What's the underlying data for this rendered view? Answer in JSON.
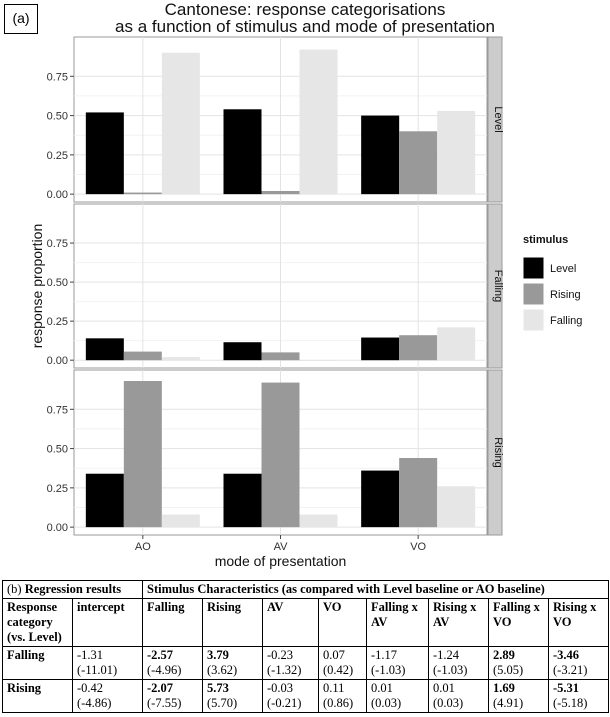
{
  "panel_label": "(a)",
  "title_line1": "Cantonese: response categorisations",
  "title_line2": "as a function of stimulus and mode of presentation",
  "chart_data": {
    "type": "bar",
    "facet_by": "response category",
    "facets": [
      "Level",
      "Falling",
      "Rising"
    ],
    "categories": [
      "AO",
      "AV",
      "VO"
    ],
    "xlabel": "mode of presentation",
    "ylabel": "response proportion",
    "ylim": [
      -0.05,
      1.0
    ],
    "yticks": [
      0.0,
      0.25,
      0.5,
      0.75
    ],
    "ytick_labels": [
      "0.00",
      "0.25",
      "0.50",
      "0.75"
    ],
    "legend": {
      "title": "stimulus",
      "placement": "right",
      "entries": [
        "Level",
        "Rising",
        "Falling"
      ]
    },
    "colors": {
      "Level": "#000000",
      "Rising": "#999999",
      "Falling": "#e6e6e6"
    },
    "panels": [
      {
        "facet": "Level",
        "series": [
          {
            "name": "Level",
            "values": [
              0.52,
              0.54,
              0.5
            ]
          },
          {
            "name": "Rising",
            "values": [
              0.01,
              0.02,
              0.4
            ]
          },
          {
            "name": "Falling",
            "values": [
              0.9,
              0.92,
              0.53
            ]
          }
        ]
      },
      {
        "facet": "Falling",
        "series": [
          {
            "name": "Level",
            "values": [
              0.14,
              0.115,
              0.145
            ]
          },
          {
            "name": "Rising",
            "values": [
              0.055,
              0.05,
              0.16
            ]
          },
          {
            "name": "Falling",
            "values": [
              0.02,
              0.0,
              0.21
            ]
          }
        ]
      },
      {
        "facet": "Rising",
        "series": [
          {
            "name": "Level",
            "values": [
              0.34,
              0.34,
              0.36
            ]
          },
          {
            "name": "Rising",
            "values": [
              0.93,
              0.92,
              0.44
            ]
          },
          {
            "name": "Falling",
            "values": [
              0.08,
              0.08,
              0.26
            ]
          }
        ]
      }
    ]
  },
  "table": {
    "caption_prefix": "(b)",
    "caption": "Regression results",
    "group_header": "Stimulus Characteristics (as compared with Level baseline or AO baseline)",
    "row_header": "Response category (vs. Level)",
    "columns": [
      "intercept",
      "Falling",
      "Rising",
      "AV",
      "VO",
      "Falling x AV",
      "Rising x AV",
      "Falling x VO",
      "Rising x VO"
    ],
    "rows": [
      {
        "label": "Falling",
        "values": [
          "-1.31",
          "-2.57",
          "3.79",
          "-0.23",
          "0.07",
          "-1.17",
          "-1.24",
          "2.89",
          "-3.46"
        ],
        "stats": [
          "(-11.01)",
          "(-4.96)",
          "(3.62)",
          "(-1.32)",
          "(0.42)",
          "(-1.03)",
          "(-1.03)",
          "(5.05)",
          "(-3.21)"
        ],
        "bold": [
          false,
          true,
          true,
          false,
          false,
          false,
          false,
          true,
          true
        ]
      },
      {
        "label": "Rising",
        "values": [
          "-0.42",
          "-2.07",
          "5.73",
          "-0.03",
          "0.11",
          "0.01",
          "0.01",
          "1.69",
          "-5.31"
        ],
        "stats": [
          "(-4.86)",
          "(-7.55)",
          "(5.70)",
          "(-0.21)",
          "(0.86)",
          "(0.03)",
          "(0.03)",
          "(4.91)",
          "(-5.18)"
        ],
        "bold": [
          false,
          true,
          true,
          false,
          false,
          false,
          false,
          true,
          true
        ]
      }
    ]
  }
}
